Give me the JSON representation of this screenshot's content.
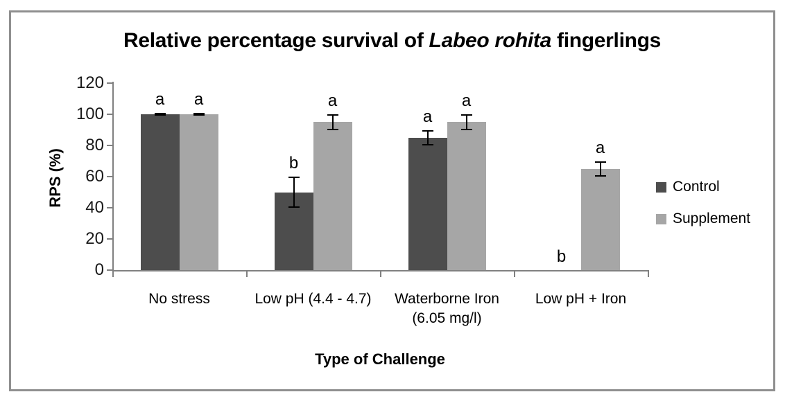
{
  "chart_data": {
    "type": "bar",
    "title": "Relative percentage survival of Labeo rohita fingerlings",
    "title_parts": {
      "pre": "Relative percentage survival of ",
      "italic": "Labeo rohita",
      "post": " fingerlings"
    },
    "xlabel": "Type of Challenge",
    "ylabel": "RPS (%)",
    "categories": [
      "No stress",
      "Low pH (4.4 - 4.7)",
      "Waterborne Iron (6.05 mg/l)",
      "Low pH + Iron"
    ],
    "series": [
      {
        "name": "Control",
        "color": "#4d4d4d",
        "values": [
          100,
          50,
          85,
          0
        ],
        "errors": [
          1,
          10,
          5,
          0
        ],
        "sig_letters": [
          "a",
          "b",
          "a",
          "b"
        ]
      },
      {
        "name": "Supplement",
        "color": "#a6a6a6",
        "values": [
          100,
          95,
          95,
          65
        ],
        "errors": [
          1,
          5,
          5,
          5
        ],
        "sig_letters": [
          "a",
          "a",
          "a",
          "a"
        ]
      }
    ],
    "ylim": [
      0,
      120
    ],
    "ytick_step": 20,
    "yticks": [
      0,
      20,
      40,
      60,
      80,
      100,
      120
    ],
    "legend_position": "right",
    "grid": false,
    "error_bar_color": "#000000",
    "axis_color": "#808080",
    "frame_border_color": "#8f8f8f"
  }
}
